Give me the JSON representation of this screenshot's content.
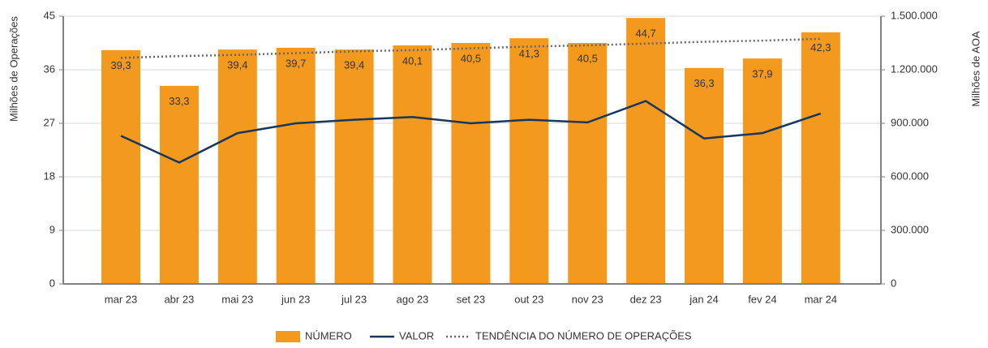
{
  "chart_data": {
    "type": "bar",
    "categories": [
      "mar 23",
      "abr 23",
      "mai 23",
      "jun 23",
      "jul 23",
      "ago 23",
      "set 23",
      "out 23",
      "nov 23",
      "dez 23",
      "jan 24",
      "fev 24",
      "mar 24"
    ],
    "series": [
      {
        "name": "NÚMERO",
        "type": "bar",
        "color": "#f39a1e",
        "values": [
          39.3,
          33.3,
          39.4,
          39.7,
          39.4,
          40.1,
          40.5,
          41.3,
          40.5,
          44.7,
          36.3,
          37.9,
          42.3
        ],
        "value_labels": [
          "39,3",
          "33,3",
          "39,4",
          "39,7",
          "39,4",
          "40,1",
          "40,5",
          "41,3",
          "40,5",
          "44,7",
          "36,3",
          "37,9",
          "42,3"
        ]
      },
      {
        "name": "VALOR",
        "type": "line",
        "axis": "y2",
        "color": "#17375e",
        "values": [
          830000,
          680000,
          845000,
          900000,
          920000,
          935000,
          900000,
          920000,
          905000,
          1025000,
          815000,
          845000,
          955000
        ]
      },
      {
        "name": "TENDÊNCIA DO NÚMERO DE OPERAÇÕES",
        "type": "line",
        "dashed": true,
        "color": "#666666",
        "values": [
          38.0,
          38.3,
          38.5,
          38.8,
          39.1,
          39.3,
          39.6,
          39.9,
          40.1,
          40.4,
          40.7,
          40.9,
          41.2
        ]
      }
    ],
    "ylabel": "Milhões de Operações",
    "y2label": "Milhões de AOA",
    "ylim": [
      0,
      45
    ],
    "yticks": [
      0,
      9,
      18,
      27,
      36,
      45
    ],
    "y2lim": [
      0,
      1500000
    ],
    "y2ticks": [
      0,
      {
        "value": 300000,
        "label": "300.000"
      },
      {
        "value": 600000,
        "label": "600.000"
      },
      {
        "value": 900000,
        "label": "900.000"
      },
      {
        "value": 1200000,
        "label": "1.200.000"
      },
      {
        "value": 1500000,
        "label": "1.500.000"
      }
    ],
    "grid": true,
    "legend": "bottom"
  }
}
